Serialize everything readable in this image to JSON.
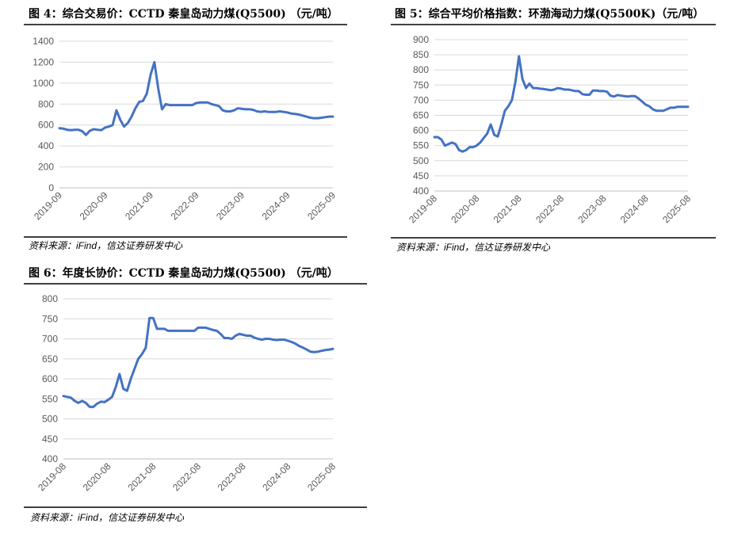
{
  "chart_data": [
    {
      "type": "line",
      "title": "图 4：综合交易价：CCTD 秦皇岛动力煤(Q5500) （元/吨）",
      "note": "资料来源：iFind，信达证券研发中心",
      "color": "#4472c4",
      "grid": true,
      "ylim": [
        0,
        1400
      ],
      "yticks": [
        0,
        200,
        400,
        600,
        800,
        1000,
        1200,
        1400
      ],
      "categories": [
        "2019-09",
        null,
        null,
        null,
        null,
        null,
        null,
        null,
        null,
        null,
        null,
        null,
        "2020-09",
        null,
        null,
        null,
        null,
        null,
        null,
        null,
        null,
        null,
        null,
        null,
        "2021-09",
        null,
        null,
        null,
        null,
        null,
        null,
        null,
        null,
        null,
        null,
        null,
        "2022-09",
        null,
        null,
        null,
        null,
        null,
        null,
        null,
        null,
        null,
        null,
        null,
        "2023-09",
        null,
        null,
        null,
        null,
        null,
        null,
        null,
        null,
        null,
        null,
        null,
        "2024-09",
        null,
        null,
        null,
        null,
        null,
        null,
        null,
        null,
        null,
        null,
        null,
        "2025-09"
      ],
      "values": [
        570,
        565,
        555,
        550,
        555,
        555,
        540,
        505,
        545,
        560,
        555,
        550,
        575,
        585,
        600,
        740,
        650,
        585,
        620,
        680,
        760,
        820,
        830,
        900,
        1080,
        1200,
        950,
        750,
        800,
        790,
        790,
        790,
        790,
        790,
        790,
        790,
        810,
        815,
        815,
        815,
        800,
        790,
        780,
        740,
        730,
        730,
        740,
        760,
        755,
        750,
        750,
        745,
        730,
        725,
        730,
        725,
        725,
        725,
        730,
        725,
        720,
        710,
        705,
        700,
        690,
        680,
        670,
        665,
        665,
        670,
        675,
        680,
        680
      ]
    },
    {
      "type": "line",
      "title": "图 5：综合平均价格指数：环渤海动力煤(Q5500K)（元/吨）",
      "note": "资料来源：iFind，信达证券研发中心",
      "color": "#4472c4",
      "grid": true,
      "ylim": [
        400,
        900
      ],
      "yticks": [
        400,
        450,
        500,
        550,
        600,
        650,
        700,
        750,
        800,
        850,
        900
      ],
      "categories": [
        "2019-08",
        null,
        null,
        null,
        null,
        null,
        null,
        null,
        null,
        null,
        null,
        null,
        "2020-08",
        null,
        null,
        null,
        null,
        null,
        null,
        null,
        null,
        null,
        null,
        null,
        "2021-08",
        null,
        null,
        null,
        null,
        null,
        null,
        null,
        null,
        null,
        null,
        null,
        "2022-08",
        null,
        null,
        null,
        null,
        null,
        null,
        null,
        null,
        null,
        null,
        null,
        "2023-08",
        null,
        null,
        null,
        null,
        null,
        null,
        null,
        null,
        null,
        null,
        null,
        "2024-08",
        null,
        null,
        null,
        null,
        null,
        null,
        null,
        null,
        null,
        null,
        null,
        "2025-08"
      ],
      "values": [
        578,
        578,
        570,
        550,
        555,
        560,
        555,
        535,
        530,
        535,
        545,
        545,
        550,
        560,
        575,
        590,
        620,
        585,
        580,
        620,
        665,
        680,
        700,
        760,
        845,
        770,
        740,
        755,
        740,
        740,
        738,
        737,
        735,
        733,
        735,
        740,
        738,
        735,
        735,
        733,
        730,
        730,
        720,
        718,
        718,
        732,
        732,
        730,
        730,
        728,
        715,
        712,
        717,
        715,
        713,
        712,
        714,
        713,
        705,
        695,
        685,
        680,
        670,
        665,
        665,
        665,
        670,
        675,
        675,
        678,
        678,
        678,
        678
      ]
    },
    {
      "type": "line",
      "title": "图 6：年度长协价：CCTD 秦皇岛动力煤(Q5500) （元/吨）",
      "note": "资料来源：iFind，信达证券研发中心",
      "color": "#4472c4",
      "grid": true,
      "ylim": [
        400,
        800
      ],
      "yticks": [
        400,
        450,
        500,
        550,
        600,
        650,
        700,
        750,
        800
      ],
      "categories": [
        "2019-08",
        null,
        null,
        null,
        null,
        null,
        null,
        null,
        null,
        null,
        null,
        null,
        "2020-08",
        null,
        null,
        null,
        null,
        null,
        null,
        null,
        null,
        null,
        null,
        null,
        "2021-08",
        null,
        null,
        null,
        null,
        null,
        null,
        null,
        null,
        null,
        null,
        null,
        "2022-08",
        null,
        null,
        null,
        null,
        null,
        null,
        null,
        null,
        null,
        null,
        null,
        "2023-08",
        null,
        null,
        null,
        null,
        null,
        null,
        null,
        null,
        null,
        null,
        null,
        "2024-08",
        null,
        null,
        null,
        null,
        null,
        null,
        null,
        null,
        null,
        null,
        null,
        "2025-08"
      ],
      "values": [
        557,
        555,
        553,
        545,
        540,
        545,
        540,
        530,
        530,
        538,
        543,
        542,
        548,
        555,
        580,
        612,
        575,
        570,
        600,
        625,
        650,
        662,
        678,
        752,
        752,
        725,
        725,
        725,
        720,
        720,
        720,
        720,
        720,
        720,
        720,
        720,
        728,
        728,
        728,
        725,
        722,
        720,
        712,
        702,
        702,
        700,
        708,
        712,
        710,
        708,
        708,
        703,
        700,
        698,
        700,
        700,
        698,
        697,
        698,
        698,
        695,
        692,
        688,
        682,
        678,
        673,
        668,
        667,
        668,
        670,
        672,
        673,
        675
      ]
    }
  ]
}
